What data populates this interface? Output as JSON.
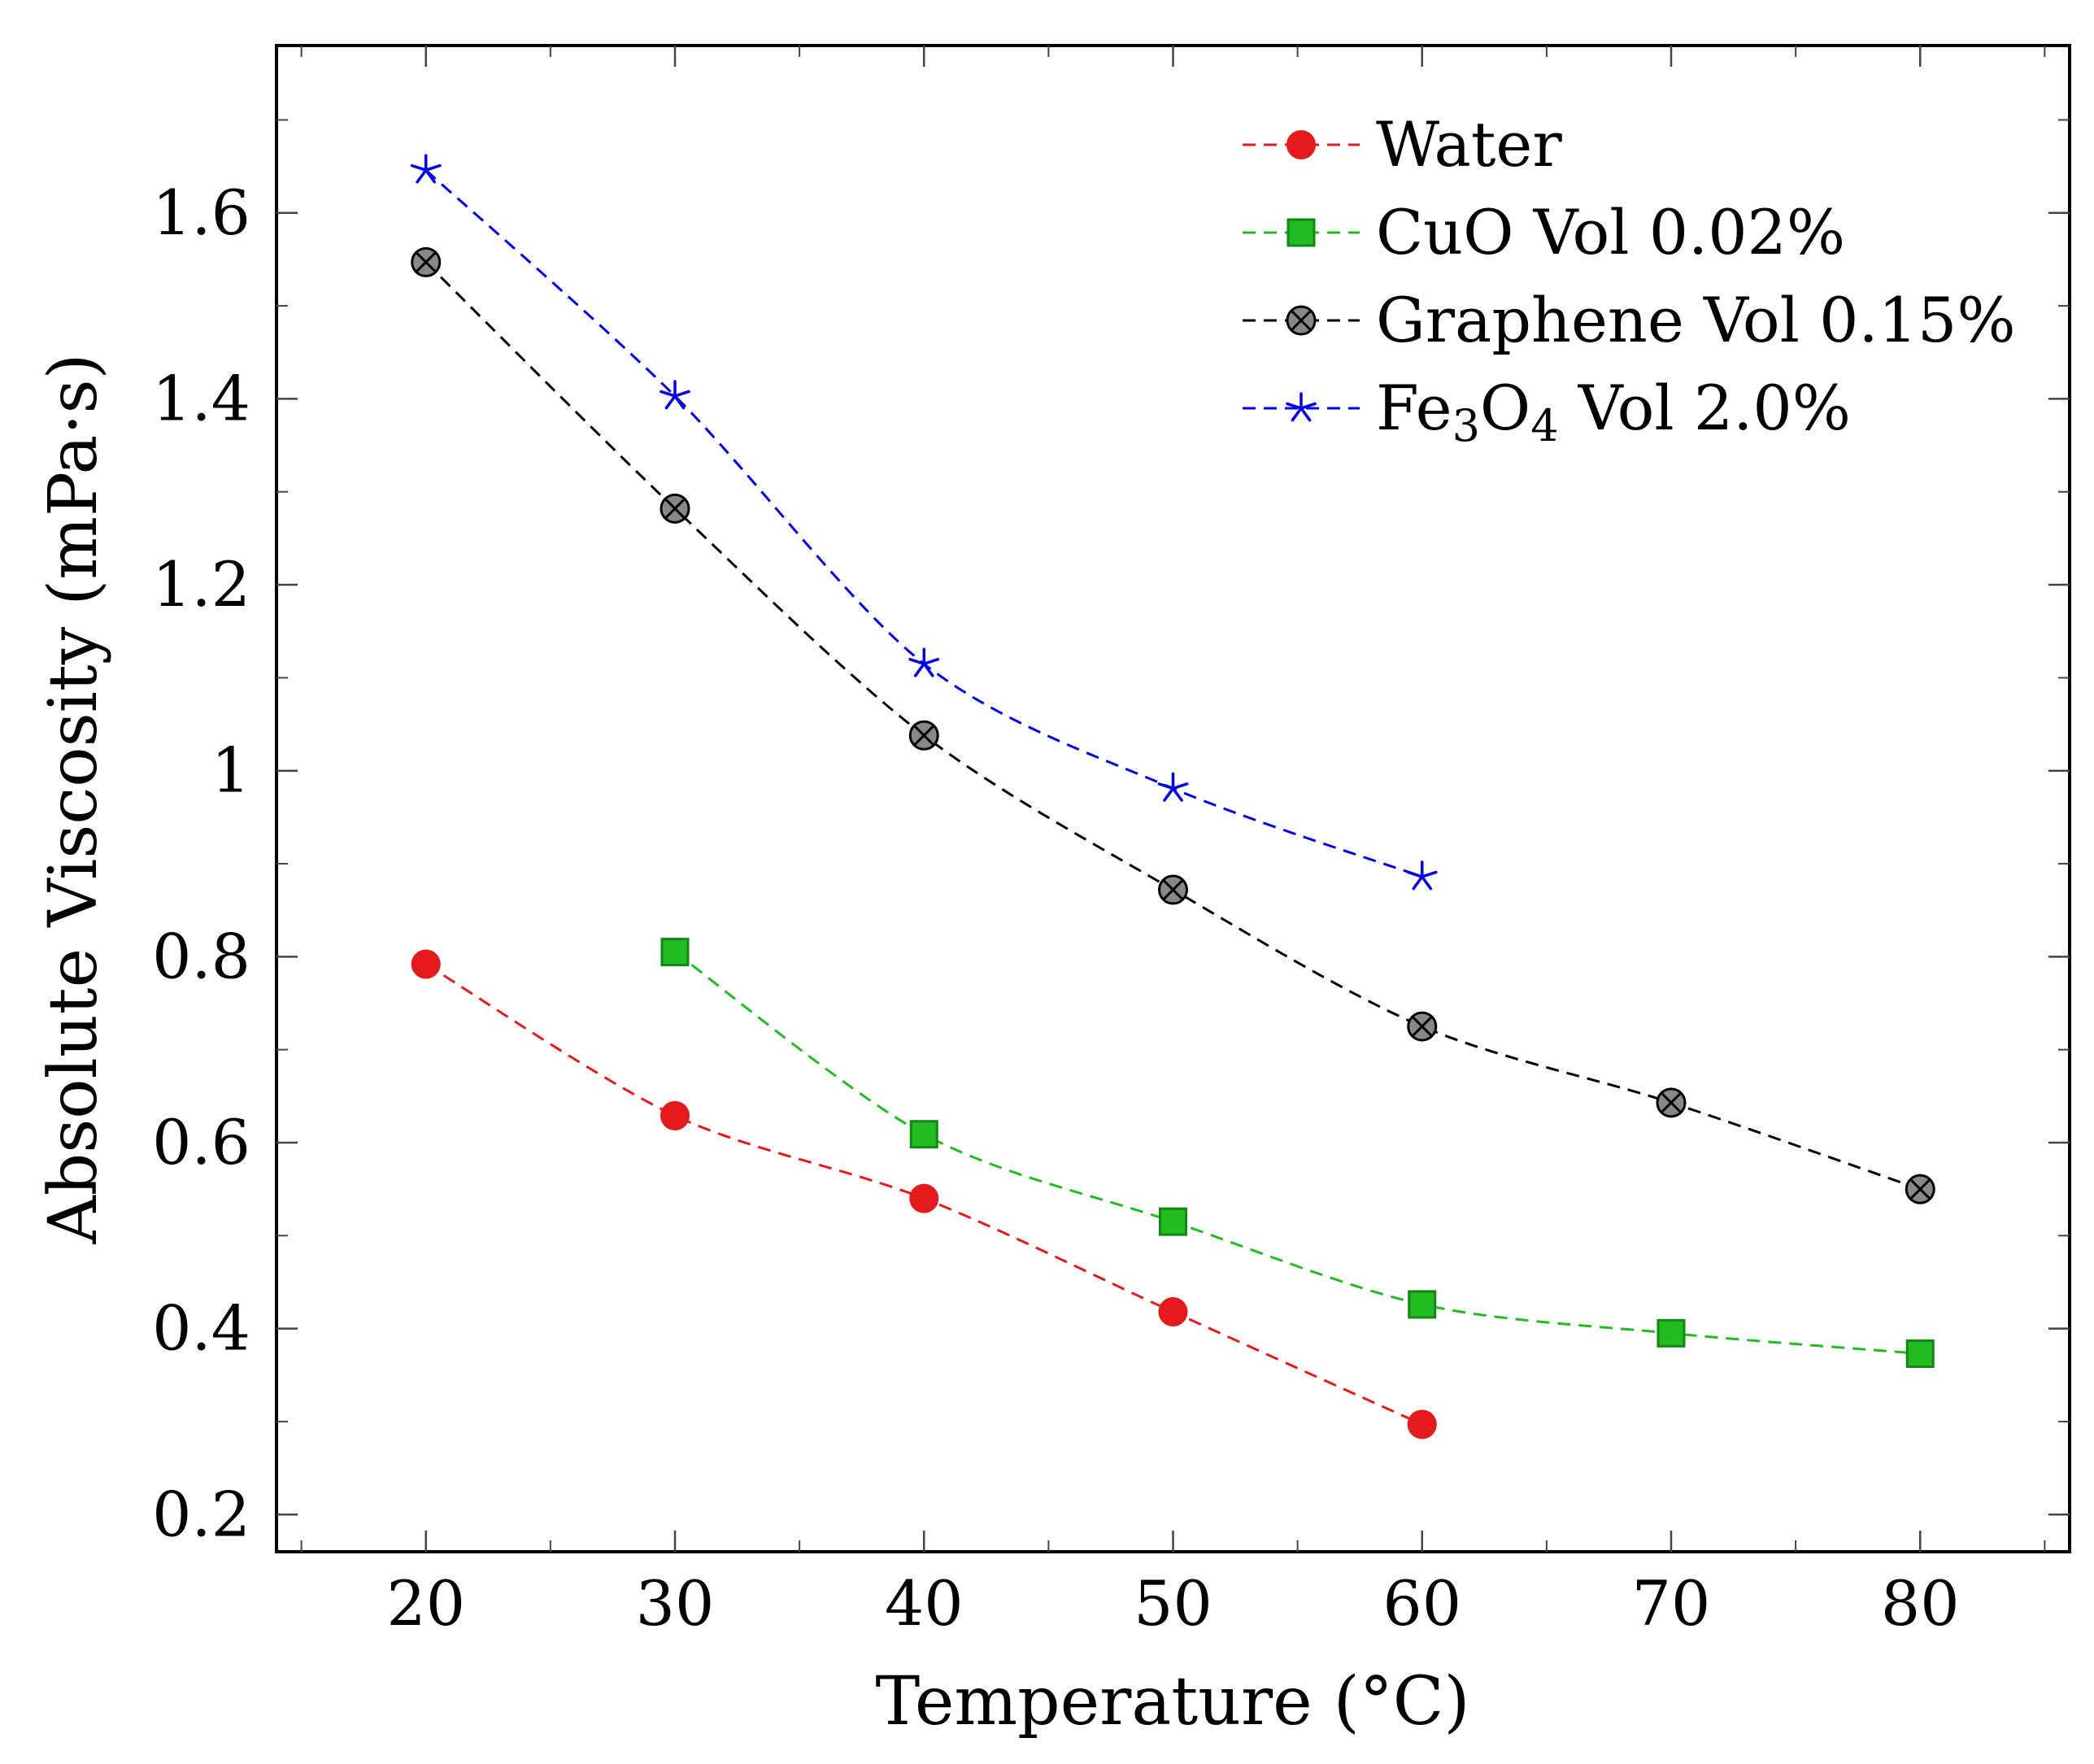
{
  "chart_data": {
    "type": "line",
    "title": "",
    "xlabel": "Temperature (°C)",
    "ylabel": "Absolute Viscosity (mPa·s)",
    "xlim": [
      14,
      86
    ],
    "ylim": [
      0.16,
      1.78
    ],
    "xticks": [
      20,
      30,
      40,
      50,
      60,
      70,
      80
    ],
    "xtick_labels": [
      "20",
      "30",
      "40",
      "50",
      "60",
      "70",
      "80"
    ],
    "yticks": [
      0.2,
      0.4,
      0.6,
      0.8,
      1.0,
      1.2,
      1.4,
      1.6
    ],
    "ytick_labels": [
      "0.2",
      "0.4",
      "0.6",
      "0.8",
      "1",
      "1.2",
      "1.4",
      "1.6"
    ],
    "grid": false,
    "legend_position": "top-right",
    "series": [
      {
        "name": "Water",
        "legend_main": "Water",
        "legend_sub": "",
        "legend_tail": "",
        "color": "#e41a1c",
        "marker": "circle",
        "x": [
          20,
          30,
          40,
          50,
          60
        ],
        "values": [
          0.792,
          0.629,
          0.54,
          0.418,
          0.297
        ]
      },
      {
        "name": "CuO Vol 0.02%",
        "legend_main": "CuO Vol 0.02%",
        "legend_sub": "",
        "legend_tail": "",
        "color": "#22bb22",
        "marker": "square",
        "x": [
          30,
          40,
          50,
          60,
          70,
          80
        ],
        "values": [
          0.805,
          0.609,
          0.515,
          0.426,
          0.395,
          0.373
        ]
      },
      {
        "name": "Graphene Vol 0.15%",
        "legend_main": "Graphene Vol 0.15%",
        "legend_sub": "",
        "legend_tail": "",
        "color": "#000000",
        "marker": "otimes",
        "x": [
          20,
          30,
          40,
          50,
          60,
          70,
          80
        ],
        "values": [
          1.547,
          1.282,
          1.038,
          0.872,
          0.725,
          0.643,
          0.55
        ]
      },
      {
        "name": "Fe3O4 Vol 2.0%",
        "legend_main": "Fe",
        "legend_sub": "3",
        "legend_mid": "O",
        "legend_sub2": "4",
        "legend_tail": " Vol 2.0%",
        "color": "#0000ee",
        "marker": "star",
        "x": [
          20,
          30,
          40,
          50,
          60
        ],
        "values": [
          1.646,
          1.403,
          1.115,
          0.981,
          0.886
        ]
      }
    ]
  }
}
